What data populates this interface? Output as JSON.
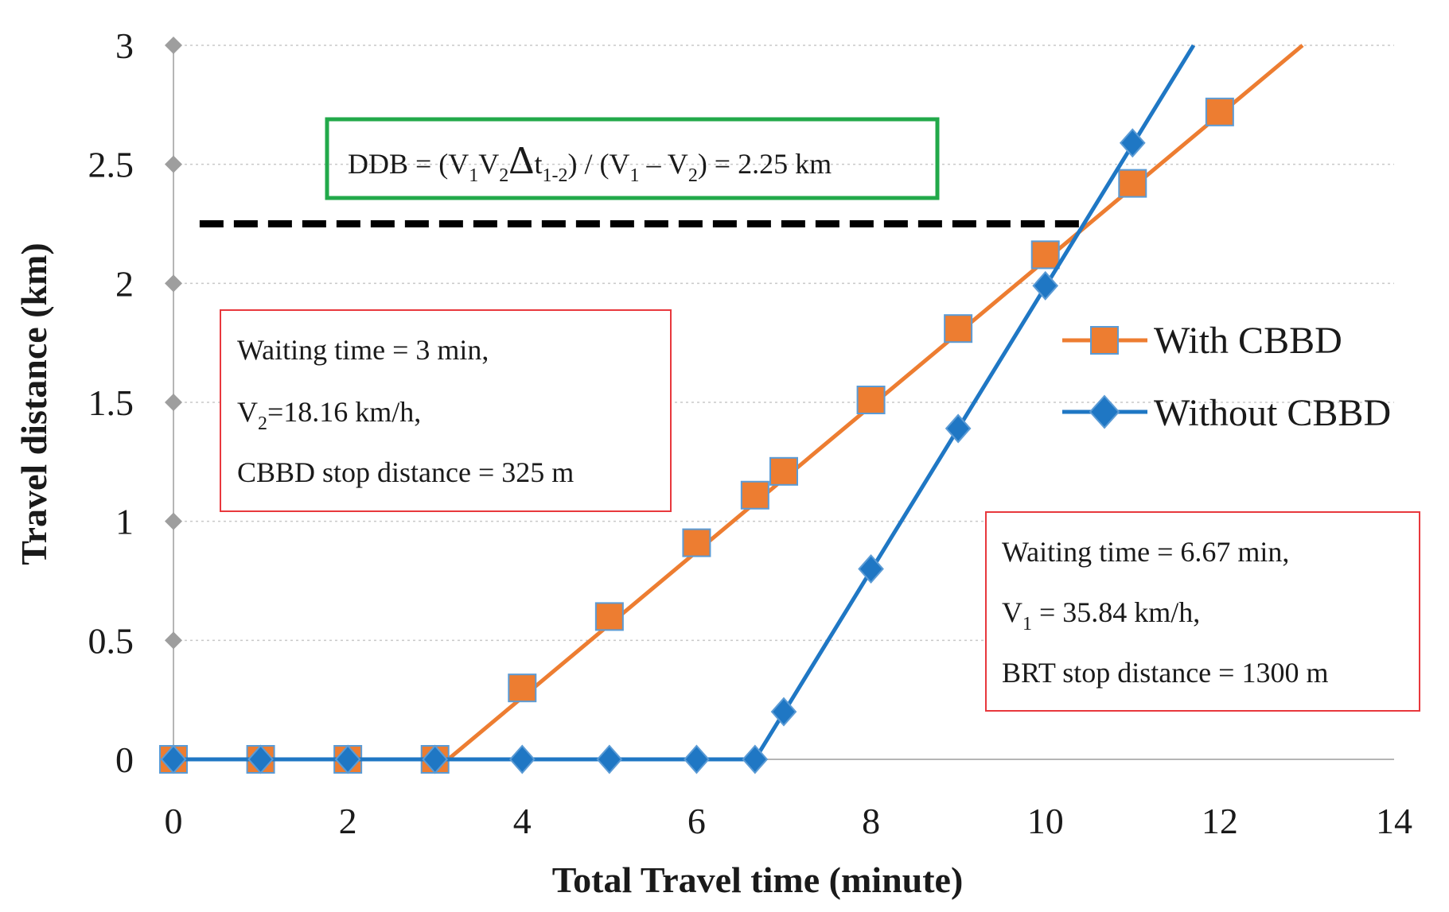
{
  "chart_data": {
    "type": "line",
    "title": "",
    "xlabel": "Total Travel time (minute)",
    "ylabel": "Travel distance (km)",
    "xlim": [
      0,
      14
    ],
    "ylim": [
      0,
      3
    ],
    "xticks": [
      0,
      2,
      4,
      6,
      8,
      10,
      12,
      14
    ],
    "yticks": [
      0,
      0.5,
      1,
      1.5,
      2,
      2.5,
      3
    ],
    "grid": "horizontal dotted",
    "legend_position": "right",
    "series": [
      {
        "name": "With CBBD",
        "color": "#ED7D31",
        "marker": "square",
        "x": [
          0,
          1,
          2,
          3,
          4,
          5,
          6,
          6.67,
          7,
          8,
          9,
          10,
          11,
          12
        ],
        "y": [
          0,
          0,
          0,
          0,
          0.3,
          0.6,
          0.91,
          1.11,
          1.21,
          1.51,
          1.81,
          2.12,
          2.42,
          2.72
        ],
        "line_x": [
          0,
          3.15,
          12.95
        ],
        "line_y": [
          0,
          0,
          3
        ]
      },
      {
        "name": "Without CBBD",
        "color": "#1F77C4",
        "marker": "diamond",
        "x": [
          0,
          1,
          2,
          3,
          4,
          5,
          6,
          6.67,
          7,
          8,
          9,
          10,
          11
        ],
        "y": [
          0,
          0,
          0,
          0,
          0,
          0,
          0,
          0,
          0.2,
          0.8,
          1.39,
          1.99,
          2.59
        ],
        "line_x": [
          0,
          6.67,
          11.7
        ],
        "line_y": [
          0,
          0,
          3
        ]
      }
    ],
    "reference_line": {
      "y": 2.25,
      "x_start": 0.3,
      "x_end": 10.5,
      "style": "dashed",
      "color": "#000000"
    },
    "annotations": {
      "ddb": {
        "prefix": "DDB = (V",
        "sub1": "1",
        "v2": "V",
        "sub2": "2",
        "delta": "Δ",
        "t": "t",
        "sub_t": "1-2",
        "middle": ") / (V",
        "sub3": "1",
        "minus": " – V",
        "sub4": "2",
        "suffix": ") = 2.25 km",
        "border_color": "#22A94A"
      },
      "cbbd_box": {
        "line1": "Waiting time = 3 min,",
        "line2_prefix": "V",
        "line2_sub": "2",
        "line2_suffix": "=18.16 km/h,",
        "line3": "CBBD stop distance = 325 m",
        "border_color": "#E8383D"
      },
      "brt_box": {
        "line1": "Waiting time = 6.67 min,",
        "line2_prefix": "V",
        "line2_sub": "1",
        "line2_suffix": " = 35.84 km/h,",
        "line3": "BRT stop distance = 1300 m",
        "border_color": "#E8383D"
      }
    }
  }
}
